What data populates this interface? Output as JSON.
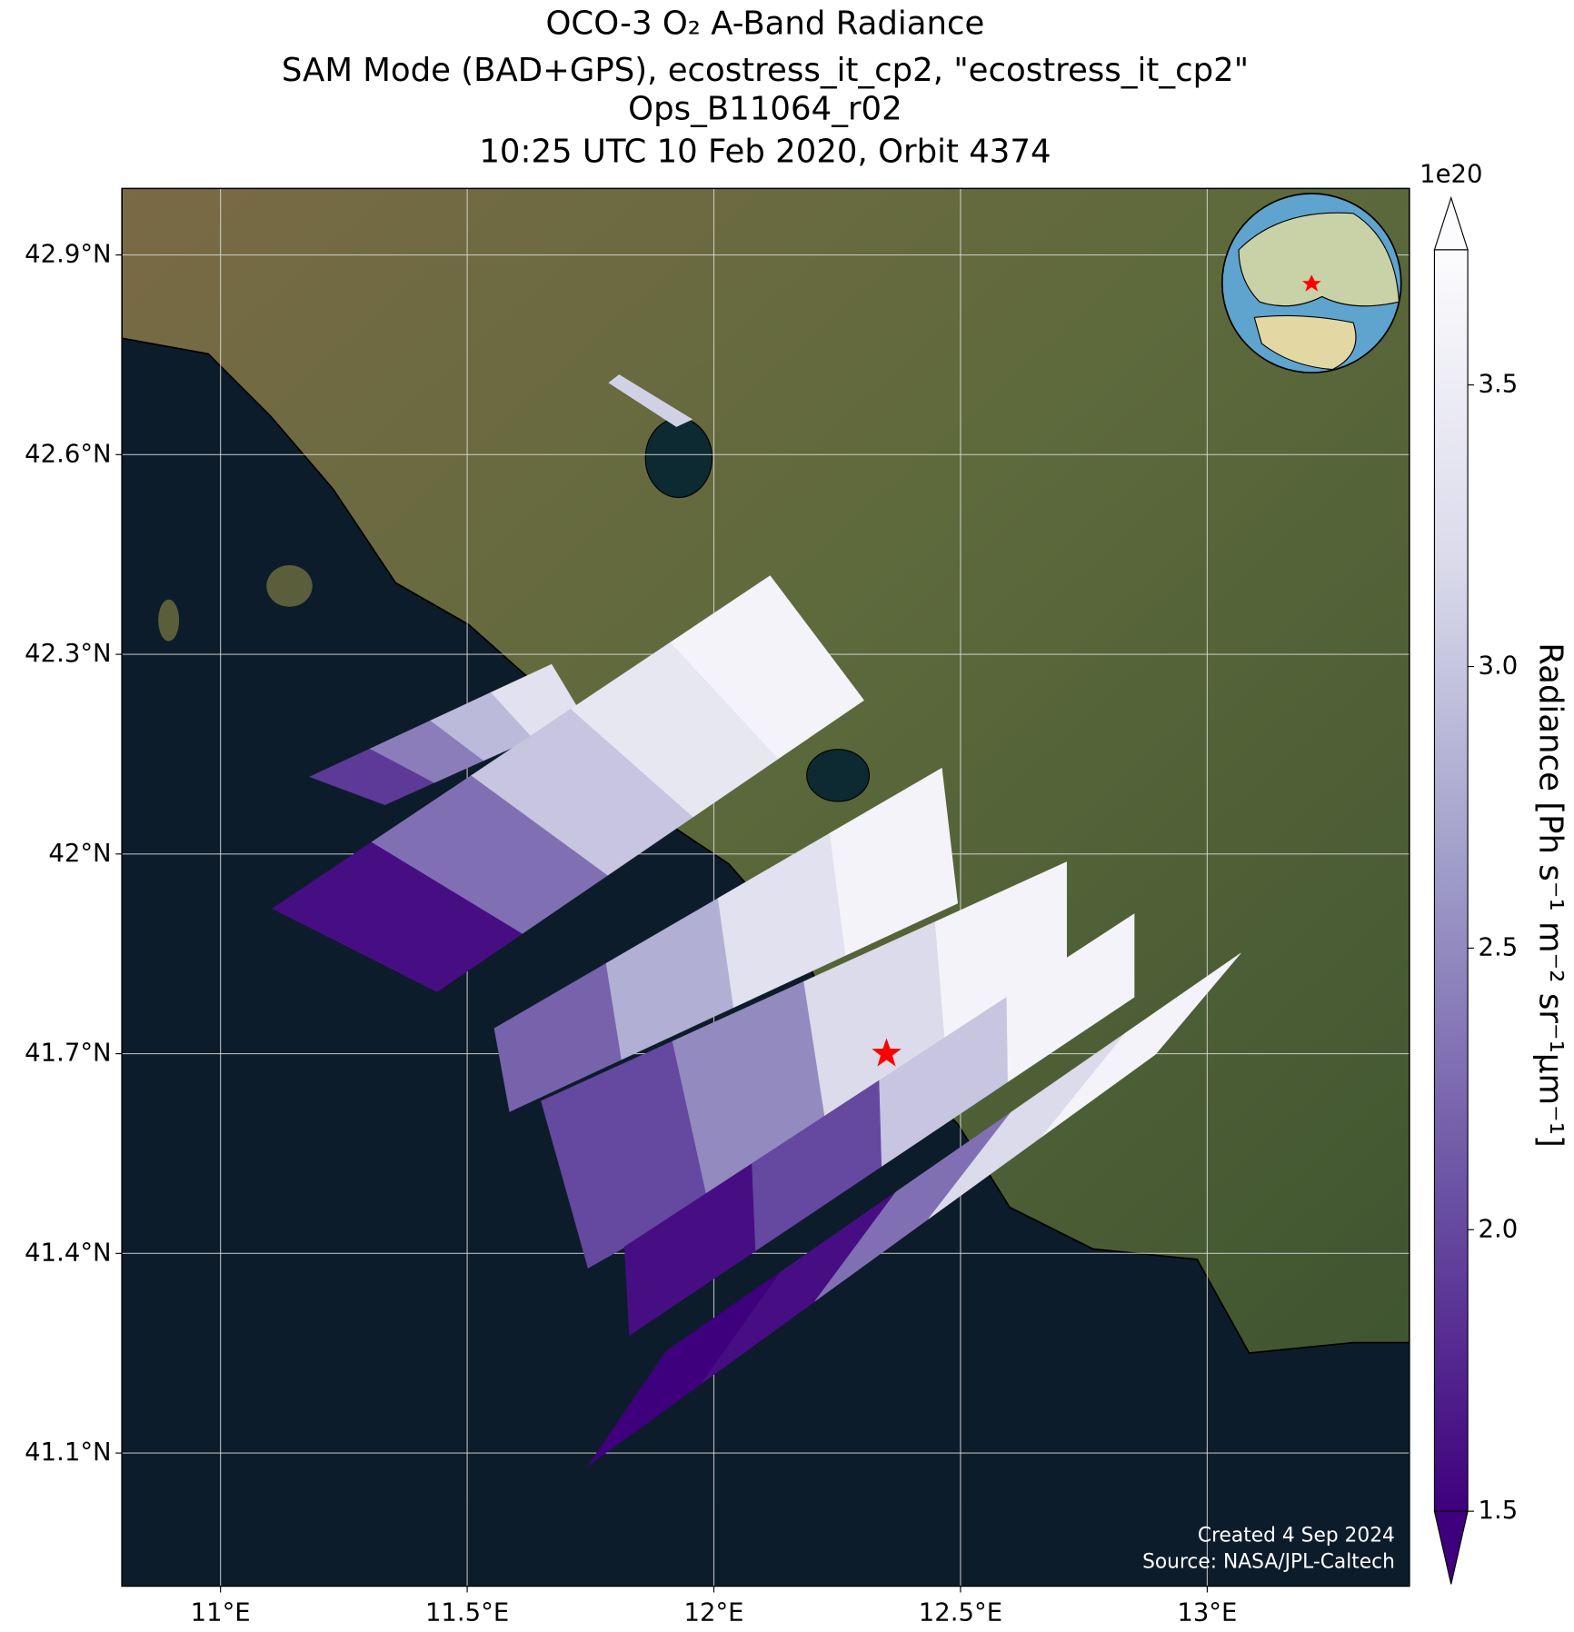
{
  "chart_data": {
    "type": "map",
    "title": [
      "OCO-3 O₂ A-Band Radiance",
      "SAM Mode (BAD+GPS), ecostress_it_cp2, \"ecostress_it_cp2\"",
      "Ops_B11064_r02",
      "10:25 UTC 10 Feb 2020, Orbit 4374"
    ],
    "xlim": [
      10.8,
      13.41
    ],
    "ylim": [
      40.9,
      43.0
    ],
    "xticks": [
      {
        "value": 11,
        "label": "11°E"
      },
      {
        "value": 11.5,
        "label": "11.5°E"
      },
      {
        "value": 12,
        "label": "12°E"
      },
      {
        "value": 12.5,
        "label": "12.5°E"
      },
      {
        "value": 13,
        "label": "13°E"
      }
    ],
    "yticks": [
      {
        "value": 41.1,
        "label": "41.1°N"
      },
      {
        "value": 41.4,
        "label": "41.4°N"
      },
      {
        "value": 41.7,
        "label": "41.7°N"
      },
      {
        "value": 42,
        "label": "42°N"
      },
      {
        "value": 42.3,
        "label": "42.3°N"
      },
      {
        "value": 42.6,
        "label": "42.6°N"
      },
      {
        "value": 42.9,
        "label": "42.9°N"
      }
    ],
    "grid": true,
    "colormap": [
      "#3f007d",
      "#6a51a3",
      "#9e9ac8",
      "#dadaeb",
      "#fcfbfd"
    ],
    "clim": [
      1.5,
      3.74
    ],
    "cticks": [
      1.5,
      {
        "value": 2,
        "label": "2.0"
      },
      2.5,
      {
        "value": 3,
        "label": "3.0"
      },
      3.5
    ],
    "colorbar_exponent": "1e20",
    "colorbar_label": "Radiance [Ph s⁻¹ m⁻² sr⁻¹μm⁻¹]",
    "swaths": [
      {
        "lon": [
          11.924,
          11.787,
          11.808,
          11.956
        ],
        "lat": [
          42.642,
          42.708,
          42.72,
          42.653
        ],
        "values": [
          3.1
        ]
      },
      {
        "lon": [
          11.333,
          11.181,
          11.671,
          11.734
        ],
        "lat": [
          42.074,
          42.116,
          42.285,
          42.207
        ],
        "values": [
          1.9,
          2.4,
          2.9,
          3.3
        ]
      },
      {
        "lon": [
          11.439,
          11.105,
          12.114,
          12.304
        ],
        "lat": [
          41.793,
          41.918,
          42.418,
          42.231
        ],
        "values": [
          1.6,
          2.3,
          3.0,
          3.4,
          3.6
        ]
      },
      {
        "lon": [
          11.586,
          11.555,
          12.462,
          12.494
        ],
        "lat": [
          41.613,
          41.738,
          42.129,
          41.926
        ],
        "values": [
          2.2,
          2.8,
          3.3,
          3.6
        ]
      },
      {
        "lon": [
          11.745,
          11.65,
          12.715,
          12.715
        ],
        "lat": [
          41.378,
          41.629,
          41.988,
          41.785
        ],
        "values": [
          2.0,
          2.5,
          3.2,
          3.6
        ]
      },
      {
        "lon": [
          11.829,
          11.819,
          12.852,
          12.852
        ],
        "lat": [
          41.277,
          41.41,
          41.91,
          41.785
        ],
        "values": [
          1.6,
          2.0,
          3.0,
          3.6
        ]
      },
      {
        "lon": [
          11.745,
          11.903,
          13.068,
          12.895
        ],
        "lat": [
          41.081,
          41.253,
          41.851,
          41.699
        ],
        "values": [
          1.5,
          1.6,
          2.3,
          3.2,
          3.6
        ]
      }
    ],
    "target": {
      "lon": 12.35,
      "lat": 41.7,
      "color": "#ff0000"
    },
    "footer": [
      "Created 4 Sep 2024",
      "Source: NASA/JPL-Caltech"
    ]
  }
}
